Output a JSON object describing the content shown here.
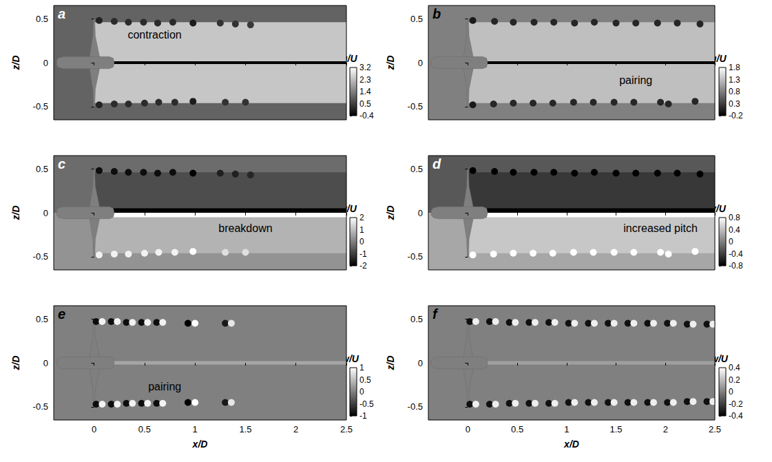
{
  "chart_data": [
    {
      "type": "contour",
      "title": "a",
      "ylabel": "z/D",
      "tick_labels": "y",
      "xlim": [
        -0.4,
        2.5
      ],
      "xticks": [
        0,
        0.5,
        1,
        1.5,
        2,
        2.5
      ],
      "ylim": [
        -0.65,
        0.65
      ],
      "yticks": [
        -0.5,
        0,
        0.5
      ],
      "colorbar": {
        "label": "u/U",
        "range": [
          -0.4,
          3.2
        ],
        "ticks": [
          -0.4,
          0.5,
          1.4,
          2.3,
          3.2
        ]
      },
      "cells": [
        {
          "x": [
            -0.4,
            2.5
          ],
          "z": [
            -0.65,
            0.65
          ],
          "value": 1.0
        },
        {
          "x": [
            0,
            2.5
          ],
          "z": [
            -0.46,
            0.46
          ],
          "value": 2.4
        },
        {
          "x": [
            0.15,
            2.5
          ],
          "z": [
            -0.015,
            0.015
          ],
          "value": -0.4
        }
      ],
      "vortices": [
        [
          0.05,
          0.48,
          0.1
        ],
        [
          0.2,
          0.47,
          0.2
        ],
        [
          0.34,
          0.46,
          0.2
        ],
        [
          0.49,
          0.46,
          0.2
        ],
        [
          0.63,
          0.45,
          0.2
        ],
        [
          0.78,
          0.46,
          0.2
        ],
        [
          0.98,
          0.45,
          0
        ],
        [
          1.25,
          0.45,
          0.3
        ],
        [
          1.4,
          0.44,
          0.3
        ],
        [
          1.55,
          0.43,
          0.4
        ],
        [
          0.05,
          -0.48,
          0.1
        ],
        [
          0.2,
          -0.47,
          0.2
        ],
        [
          0.34,
          -0.47,
          0.2
        ],
        [
          0.5,
          -0.46,
          0.2
        ],
        [
          0.64,
          -0.45,
          0.2
        ],
        [
          0.8,
          -0.45,
          0.2
        ],
        [
          0.98,
          -0.44,
          0
        ],
        [
          1.3,
          -0.45,
          0.3
        ],
        [
          1.5,
          -0.45,
          0.3
        ]
      ],
      "annotations": [
        {
          "text": "contraction",
          "x": 0.6,
          "z": 0.32
        }
      ]
    },
    {
      "type": "contour",
      "title": "b",
      "ylabel": "z/D",
      "tick_labels": "y",
      "xlim": [
        -0.4,
        2.5
      ],
      "xticks": [
        0,
        0.5,
        1,
        1.5,
        2,
        2.5
      ],
      "ylim": [
        -0.65,
        0.65
      ],
      "yticks": [
        -0.5,
        0,
        0.5
      ],
      "colorbar": {
        "label": "u/U",
        "range": [
          -0.2,
          1.8
        ],
        "ticks": [
          -0.2,
          0.3,
          0.8,
          1.3,
          1.8
        ]
      },
      "cells": [
        {
          "x": [
            -0.4,
            2.5
          ],
          "z": [
            -0.65,
            0.65
          ],
          "value": 0.8
        },
        {
          "x": [
            0,
            2.5
          ],
          "z": [
            -0.46,
            0.46
          ],
          "value": 1.3
        },
        {
          "x": [
            0.15,
            2.5
          ],
          "z": [
            -0.015,
            0.015
          ],
          "value": -0.2
        }
      ],
      "vortices": [
        [
          0.05,
          0.48,
          0
        ],
        [
          0.27,
          0.47,
          0.1
        ],
        [
          0.46,
          0.46,
          0.1
        ],
        [
          0.67,
          0.46,
          0.1
        ],
        [
          0.87,
          0.46,
          0.1
        ],
        [
          1.08,
          0.45,
          0.1
        ],
        [
          1.28,
          0.46,
          0.1
        ],
        [
          1.5,
          0.45,
          0.1
        ],
        [
          1.7,
          0.45,
          0.1
        ],
        [
          1.92,
          0.45,
          0.1
        ],
        [
          2.12,
          0.45,
          0.1
        ],
        [
          2.35,
          0.44,
          0.1
        ],
        [
          0.05,
          -0.48,
          0
        ],
        [
          0.26,
          -0.47,
          0.1
        ],
        [
          0.46,
          -0.46,
          0.1
        ],
        [
          0.66,
          -0.46,
          0.1
        ],
        [
          0.86,
          -0.46,
          0.1
        ],
        [
          1.07,
          -0.45,
          0.1
        ],
        [
          1.27,
          -0.45,
          0.1
        ],
        [
          1.48,
          -0.45,
          0.1
        ],
        [
          1.68,
          -0.45,
          0.1
        ],
        [
          1.95,
          -0.45,
          0.1
        ],
        [
          2.03,
          -0.47,
          0.1
        ],
        [
          2.3,
          -0.44,
          0.1
        ]
      ],
      "annotations": [
        {
          "text": "pairing",
          "x": 1.7,
          "z": -0.2
        }
      ]
    },
    {
      "type": "contour",
      "title": "c",
      "ylabel": "z/D",
      "tick_labels": "y",
      "xlim": [
        -0.4,
        2.5
      ],
      "xticks": [
        0,
        0.5,
        1,
        1.5,
        2,
        2.5
      ],
      "ylim": [
        -0.65,
        0.65
      ],
      "yticks": [
        -0.5,
        0,
        0.5
      ],
      "colorbar": {
        "label": "v/U",
        "range": [
          -2,
          2
        ],
        "ticks": [
          -2,
          -1,
          0,
          1,
          2
        ]
      },
      "cells": [
        {
          "x": [
            -0.4,
            2.5
          ],
          "z": [
            0,
            0.65
          ],
          "value": -0.3
        },
        {
          "x": [
            -0.4,
            2.5
          ],
          "z": [
            -0.65,
            0
          ],
          "value": 0.3
        },
        {
          "x": [
            0,
            2.5
          ],
          "z": [
            0,
            0.46
          ],
          "value": -0.8
        },
        {
          "x": [
            0,
            2.5
          ],
          "z": [
            -0.46,
            0
          ],
          "value": 0.8
        },
        {
          "x": [
            0.15,
            2.5
          ],
          "z": [
            0,
            0.05
          ],
          "value": -2
        },
        {
          "x": [
            0.15,
            2.5
          ],
          "z": [
            -0.05,
            0
          ],
          "value": 2
        }
      ],
      "vortices": [
        [
          0.05,
          0.48,
          -1.8
        ],
        [
          0.2,
          0.47,
          -1.8
        ],
        [
          0.34,
          0.46,
          -1.8
        ],
        [
          0.49,
          0.46,
          -1.8
        ],
        [
          0.63,
          0.45,
          -1.8
        ],
        [
          0.78,
          0.46,
          -1.8
        ],
        [
          0.98,
          0.45,
          -2
        ],
        [
          1.25,
          0.45,
          -1.5
        ],
        [
          1.4,
          0.44,
          -1.5
        ],
        [
          1.55,
          0.43,
          -1.4
        ],
        [
          0.05,
          -0.48,
          1.8
        ],
        [
          0.2,
          -0.47,
          1.8
        ],
        [
          0.34,
          -0.47,
          1.8
        ],
        [
          0.5,
          -0.46,
          1.8
        ],
        [
          0.64,
          -0.45,
          1.8
        ],
        [
          0.8,
          -0.45,
          1.8
        ],
        [
          0.98,
          -0.44,
          2
        ],
        [
          1.3,
          -0.45,
          1.5
        ],
        [
          1.5,
          -0.45,
          1.5
        ]
      ],
      "annotations": [
        {
          "text": "breakdown",
          "x": 1.5,
          "z": -0.18
        }
      ]
    },
    {
      "type": "contour",
      "title": "d",
      "ylabel": "z/D",
      "tick_labels": "y",
      "xlim": [
        -0.4,
        2.5
      ],
      "xticks": [
        0,
        0.5,
        1,
        1.5,
        2,
        2.5
      ],
      "ylim": [
        -0.65,
        0.65
      ],
      "yticks": [
        -0.5,
        0,
        0.5
      ],
      "colorbar": {
        "label": "v/U",
        "range": [
          -0.8,
          0.8
        ],
        "ticks": [
          -0.8,
          -0.4,
          0,
          0.4,
          0.8
        ]
      },
      "cells": [
        {
          "x": [
            -0.4,
            2.5
          ],
          "z": [
            0,
            0.65
          ],
          "value": -0.25
        },
        {
          "x": [
            -0.4,
            2.5
          ],
          "z": [
            -0.65,
            0
          ],
          "value": 0.25
        },
        {
          "x": [
            0,
            2.5
          ],
          "z": [
            0,
            0.46
          ],
          "value": -0.45
        },
        {
          "x": [
            0,
            2.5
          ],
          "z": [
            -0.46,
            0
          ],
          "value": 0.45
        },
        {
          "x": [
            0.15,
            2.5
          ],
          "z": [
            0,
            0.05
          ],
          "value": -0.8
        },
        {
          "x": [
            0.15,
            2.5
          ],
          "z": [
            -0.05,
            0
          ],
          "value": 0.8
        }
      ],
      "vortices": [
        [
          0.05,
          0.48,
          -0.8
        ],
        [
          0.27,
          0.47,
          -0.8
        ],
        [
          0.46,
          0.46,
          -0.8
        ],
        [
          0.67,
          0.46,
          -0.8
        ],
        [
          0.87,
          0.46,
          -0.8
        ],
        [
          1.08,
          0.45,
          -0.8
        ],
        [
          1.28,
          0.46,
          -0.8
        ],
        [
          1.5,
          0.45,
          -0.8
        ],
        [
          1.7,
          0.45,
          -0.8
        ],
        [
          1.92,
          0.45,
          -0.8
        ],
        [
          2.12,
          0.45,
          -0.8
        ],
        [
          2.35,
          0.44,
          -0.8
        ],
        [
          0.05,
          -0.48,
          0.8
        ],
        [
          0.26,
          -0.47,
          0.8
        ],
        [
          0.46,
          -0.46,
          0.8
        ],
        [
          0.66,
          -0.46,
          0.8
        ],
        [
          0.86,
          -0.46,
          0.8
        ],
        [
          1.07,
          -0.45,
          0.8
        ],
        [
          1.27,
          -0.45,
          0.8
        ],
        [
          1.48,
          -0.45,
          0.8
        ],
        [
          1.68,
          -0.45,
          0.8
        ],
        [
          1.95,
          -0.45,
          0.8
        ],
        [
          2.03,
          -0.47,
          0.8
        ],
        [
          2.3,
          -0.44,
          0.8
        ]
      ],
      "annotations": [
        {
          "text": "increased pitch",
          "x": 1.95,
          "z": -0.18
        }
      ]
    },
    {
      "type": "contour",
      "title": "e",
      "xlabel": "x/D",
      "ylabel": "z/D",
      "xlim": [
        -0.4,
        2.5
      ],
      "xticks": [
        0,
        0.5,
        1,
        1.5,
        2,
        2.5
      ],
      "ylim": [
        -0.65,
        0.65
      ],
      "yticks": [
        -0.5,
        0,
        0.5
      ],
      "colorbar": {
        "label": "w/U",
        "range": [
          -1,
          1
        ],
        "ticks": [
          -1,
          -0.5,
          0,
          0.5,
          1
        ]
      },
      "cells": [
        {
          "x": [
            -0.4,
            2.5
          ],
          "z": [
            -0.65,
            0.65
          ],
          "value": 0
        },
        {
          "x": [
            0.15,
            2.5
          ],
          "z": [
            -0.02,
            0.02
          ],
          "value": 0.3
        }
      ],
      "vortices": [
        [
          0.02,
          0.47,
          -0.9
        ],
        [
          0.08,
          0.47,
          0.9
        ],
        [
          0.17,
          0.47,
          -0.9
        ],
        [
          0.23,
          0.47,
          0.9
        ],
        [
          0.32,
          0.46,
          -0.9
        ],
        [
          0.38,
          0.46,
          0.9
        ],
        [
          0.47,
          0.46,
          -0.9
        ],
        [
          0.53,
          0.46,
          0.9
        ],
        [
          0.62,
          0.46,
          -0.9
        ],
        [
          0.68,
          0.46,
          0.9
        ],
        [
          0.93,
          0.45,
          -1
        ],
        [
          1.0,
          0.45,
          1
        ],
        [
          1.3,
          0.45,
          -0.8
        ],
        [
          1.36,
          0.45,
          0.8
        ],
        [
          0.02,
          -0.47,
          -0.9
        ],
        [
          0.08,
          -0.47,
          0.9
        ],
        [
          0.17,
          -0.47,
          -0.9
        ],
        [
          0.23,
          -0.47,
          0.9
        ],
        [
          0.32,
          -0.46,
          -0.9
        ],
        [
          0.38,
          -0.46,
          0.9
        ],
        [
          0.47,
          -0.46,
          -0.9
        ],
        [
          0.53,
          -0.46,
          0.9
        ],
        [
          0.62,
          -0.46,
          -0.9
        ],
        [
          0.68,
          -0.46,
          0.9
        ],
        [
          0.93,
          -0.45,
          -1
        ],
        [
          1.0,
          -0.45,
          1
        ],
        [
          1.3,
          -0.45,
          -0.8
        ],
        [
          1.36,
          -0.45,
          0.8
        ]
      ],
      "annotations": [
        {
          "text": "pairing",
          "x": 0.7,
          "z": -0.27
        }
      ]
    },
    {
      "type": "contour",
      "title": "f",
      "xlabel": "x/D",
      "ylabel": "z/D",
      "xlim": [
        -0.4,
        2.5
      ],
      "xticks": [
        0,
        0.5,
        1,
        1.5,
        2,
        2.5
      ],
      "ylim": [
        -0.65,
        0.65
      ],
      "yticks": [
        -0.5,
        0,
        0.5
      ],
      "colorbar": {
        "label": "w/U",
        "range": [
          -0.4,
          0.4
        ],
        "ticks": [
          -0.4,
          -0.2,
          0,
          0.2,
          0.4
        ]
      },
      "cells": [
        {
          "x": [
            -0.4,
            2.5
          ],
          "z": [
            -0.65,
            0.65
          ],
          "value": 0
        },
        {
          "x": [
            0.15,
            2.5
          ],
          "z": [
            -0.02,
            0.02
          ],
          "value": 0.1
        }
      ],
      "vortices": [
        [
          0.02,
          0.47,
          -0.35
        ],
        [
          0.08,
          0.47,
          0.35
        ],
        [
          0.22,
          0.47,
          -0.35
        ],
        [
          0.28,
          0.47,
          0.35
        ],
        [
          0.42,
          0.46,
          -0.35
        ],
        [
          0.48,
          0.46,
          0.35
        ],
        [
          0.62,
          0.46,
          -0.35
        ],
        [
          0.68,
          0.46,
          0.35
        ],
        [
          0.82,
          0.46,
          -0.35
        ],
        [
          0.88,
          0.46,
          0.35
        ],
        [
          1.02,
          0.45,
          -0.35
        ],
        [
          1.08,
          0.45,
          0.35
        ],
        [
          1.22,
          0.45,
          -0.35
        ],
        [
          1.28,
          0.45,
          0.35
        ],
        [
          1.42,
          0.45,
          -0.35
        ],
        [
          1.48,
          0.45,
          0.35
        ],
        [
          1.62,
          0.45,
          -0.35
        ],
        [
          1.68,
          0.45,
          0.35
        ],
        [
          1.82,
          0.45,
          -0.35
        ],
        [
          1.88,
          0.45,
          0.35
        ],
        [
          2.02,
          0.45,
          -0.35
        ],
        [
          2.08,
          0.45,
          0.35
        ],
        [
          2.22,
          0.44,
          -0.35
        ],
        [
          2.28,
          0.44,
          0.35
        ],
        [
          2.42,
          0.44,
          -0.35
        ],
        [
          2.48,
          0.44,
          0.35
        ],
        [
          0.02,
          -0.47,
          -0.35
        ],
        [
          0.08,
          -0.47,
          0.35
        ],
        [
          0.22,
          -0.47,
          -0.35
        ],
        [
          0.28,
          -0.47,
          0.35
        ],
        [
          0.42,
          -0.46,
          -0.35
        ],
        [
          0.48,
          -0.46,
          0.35
        ],
        [
          0.62,
          -0.46,
          -0.35
        ],
        [
          0.68,
          -0.46,
          0.35
        ],
        [
          0.82,
          -0.46,
          -0.35
        ],
        [
          0.88,
          -0.46,
          0.35
        ],
        [
          1.02,
          -0.45,
          -0.35
        ],
        [
          1.08,
          -0.45,
          0.35
        ],
        [
          1.22,
          -0.45,
          -0.35
        ],
        [
          1.28,
          -0.45,
          0.35
        ],
        [
          1.42,
          -0.45,
          -0.35
        ],
        [
          1.48,
          -0.45,
          0.35
        ],
        [
          1.62,
          -0.45,
          -0.35
        ],
        [
          1.68,
          -0.45,
          0.35
        ],
        [
          1.82,
          -0.45,
          -0.35
        ],
        [
          1.88,
          -0.45,
          0.35
        ],
        [
          2.02,
          -0.45,
          -0.35
        ],
        [
          2.08,
          -0.45,
          0.35
        ],
        [
          2.22,
          -0.44,
          -0.35
        ],
        [
          2.28,
          -0.44,
          0.35
        ],
        [
          2.42,
          -0.44,
          -0.35
        ],
        [
          2.48,
          -0.44,
          0.35
        ]
      ],
      "annotations": []
    }
  ]
}
